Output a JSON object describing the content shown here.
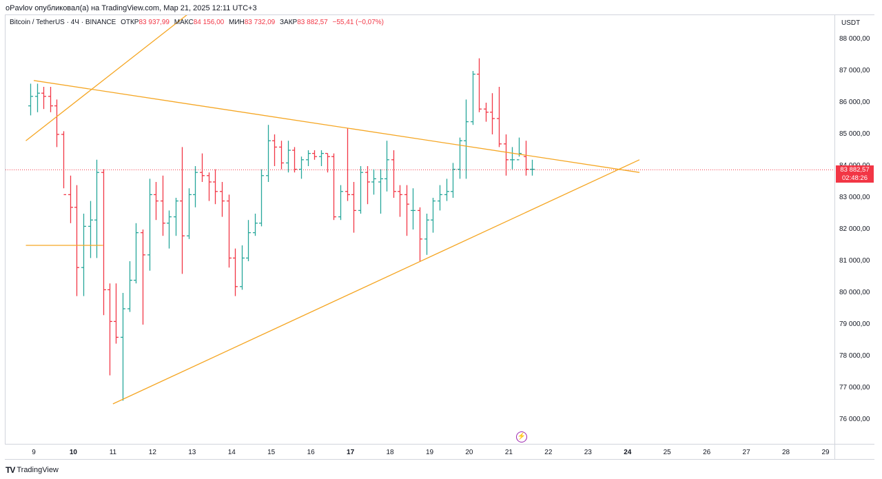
{
  "header": {
    "published": "oPavlov опубликовал(а) на TradingView.com, Мар 21, 2025 12:11 UTC+3"
  },
  "legend": {
    "symbol": "Bitcoin / TetherUS · 4Ч · BINANCE",
    "open_label": "ОТКР",
    "open_value": "83 937,99",
    "high_label": "МАКС",
    "high_value": "84 156,00",
    "low_label": "МИН",
    "low_value": "83 732,09",
    "close_label": "ЗАКР",
    "close_value": "83 882,57",
    "change_value": "−55,41 (−0,07%)"
  },
  "price_axis": {
    "currency": "USDT",
    "ticks": [
      "88 000,00",
      "87 000,00",
      "86 000,00",
      "85 000,00",
      "84 000,00",
      "83 000,00",
      "82 000,00",
      "81 000,00",
      "80 000,00",
      "79 000,00",
      "78 000,00",
      "77 000,00",
      "76 000,00"
    ]
  },
  "last_price": {
    "price": "83 882,57",
    "countdown": "02:48:26"
  },
  "time_axis": {
    "labels": [
      "9",
      "10",
      "11",
      "12",
      "13",
      "14",
      "15",
      "16",
      "17",
      "18",
      "19",
      "20",
      "21",
      "22",
      "23",
      "24",
      "25",
      "26",
      "27",
      "28",
      "29"
    ],
    "bold": [
      "10",
      "17",
      "24"
    ]
  },
  "brand": {
    "name": "TradingView",
    "logo": "TV"
  },
  "icons": {
    "alert": "lightning-icon"
  },
  "colors": {
    "up": "#26a69a",
    "down": "#f23645",
    "trendline": "#f5a623",
    "last_price": "#f23645"
  },
  "chart_data": {
    "type": "ohlc",
    "symbol": "Bitcoin / TetherUS",
    "interval": "4Ч",
    "exchange": "BINANCE",
    "ylim": [
      75300,
      88800
    ],
    "x_unit": "day of March 2025",
    "bars": [
      [
        8.92,
        85900,
        86600,
        85600,
        86200
      ],
      [
        9.08,
        86200,
        86600,
        85700,
        86300
      ],
      [
        9.25,
        86300,
        86500,
        85800,
        86200
      ],
      [
        9.42,
        86200,
        86500,
        85700,
        85900
      ],
      [
        9.58,
        85900,
        86100,
        84600,
        85000
      ],
      [
        9.75,
        85000,
        85100,
        83300,
        83100
      ],
      [
        9.92,
        83100,
        83700,
        82200,
        82700
      ],
      [
        10.08,
        82700,
        83400,
        79900,
        80800
      ],
      [
        10.25,
        80800,
        82500,
        79900,
        82100
      ],
      [
        10.42,
        82100,
        82900,
        81100,
        82300
      ],
      [
        10.58,
        82300,
        84200,
        81100,
        83800
      ],
      [
        10.75,
        83800,
        83900,
        79300,
        80100
      ],
      [
        10.92,
        80100,
        80300,
        77400,
        79100
      ],
      [
        11.08,
        79100,
        80300,
        78400,
        78600
      ],
      [
        11.25,
        78600,
        80000,
        76600,
        79500
      ],
      [
        11.42,
        79500,
        81000,
        79400,
        80400
      ],
      [
        11.58,
        80400,
        82200,
        80300,
        81900
      ],
      [
        11.75,
        81900,
        82000,
        79000,
        81200
      ],
      [
        11.92,
        81200,
        83600,
        80700,
        83100
      ],
      [
        12.08,
        83100,
        83500,
        82300,
        82900
      ],
      [
        12.25,
        82900,
        83700,
        81800,
        82200
      ],
      [
        12.42,
        82200,
        82600,
        81400,
        82400
      ],
      [
        12.58,
        82400,
        83000,
        81800,
        82900
      ],
      [
        12.75,
        82900,
        84600,
        80600,
        81800
      ],
      [
        12.92,
        81800,
        83300,
        81700,
        83100
      ],
      [
        13.08,
        83100,
        84000,
        82700,
        83800
      ],
      [
        13.25,
        83800,
        84400,
        83500,
        83700
      ],
      [
        13.42,
        83700,
        83800,
        82900,
        83500
      ],
      [
        13.58,
        83500,
        83900,
        82800,
        83200
      ],
      [
        13.75,
        83200,
        83500,
        82400,
        82900
      ],
      [
        13.92,
        82900,
        83100,
        80800,
        81100
      ],
      [
        14.08,
        81100,
        81400,
        79900,
        80200
      ],
      [
        14.25,
        80200,
        81500,
        80100,
        81100
      ],
      [
        14.42,
        81100,
        82300,
        81000,
        81900
      ],
      [
        14.58,
        81900,
        82500,
        81800,
        82200
      ],
      [
        14.75,
        82200,
        83900,
        82100,
        83700
      ],
      [
        14.92,
        83700,
        85300,
        83500,
        84800
      ],
      [
        15.08,
        84800,
        85000,
        84000,
        84600
      ],
      [
        15.25,
        84600,
        84800,
        83900,
        84100
      ],
      [
        15.42,
        84100,
        84800,
        83800,
        84500
      ],
      [
        15.58,
        84500,
        84600,
        83800,
        83900
      ],
      [
        15.75,
        83900,
        84300,
        83600,
        84200
      ],
      [
        15.92,
        84200,
        84500,
        84000,
        84400
      ],
      [
        16.08,
        84400,
        84500,
        84200,
        84300
      ],
      [
        16.25,
        84300,
        84500,
        84000,
        84400
      ],
      [
        16.42,
        84400,
        84400,
        83800,
        84300
      ],
      [
        16.58,
        84300,
        84400,
        82300,
        82400
      ],
      [
        16.75,
        82400,
        83400,
        82300,
        83200
      ],
      [
        16.92,
        83200,
        85200,
        82900,
        83100
      ],
      [
        17.08,
        83100,
        83500,
        81900,
        82600
      ],
      [
        17.25,
        82600,
        84000,
        82500,
        83800
      ],
      [
        17.42,
        83800,
        84000,
        82800,
        83500
      ],
      [
        17.58,
        83500,
        83900,
        83100,
        83600
      ],
      [
        17.75,
        83500,
        83900,
        82500,
        83600
      ],
      [
        17.92,
        83600,
        84800,
        83200,
        84200
      ],
      [
        18.08,
        84200,
        84500,
        83000,
        83200
      ],
      [
        18.25,
        83200,
        83400,
        82400,
        83100
      ],
      [
        18.42,
        83100,
        83400,
        81800,
        82800
      ],
      [
        18.58,
        82600,
        83300,
        82000,
        82600
      ],
      [
        18.75,
        82600,
        82700,
        81000,
        81700
      ],
      [
        18.92,
        81700,
        82500,
        81200,
        82300
      ],
      [
        19.08,
        82300,
        83000,
        81900,
        82900
      ],
      [
        19.25,
        82900,
        83400,
        82600,
        83100
      ],
      [
        19.42,
        83100,
        83600,
        82900,
        83200
      ],
      [
        19.58,
        83200,
        84100,
        83000,
        83900
      ],
      [
        19.75,
        83900,
        84900,
        83600,
        84800
      ],
      [
        19.92,
        84800,
        86100,
        83600,
        85400
      ],
      [
        20.08,
        85400,
        87000,
        85300,
        86900
      ],
      [
        20.25,
        86900,
        87400,
        85700,
        85800
      ],
      [
        20.42,
        85800,
        86000,
        85400,
        85700
      ],
      [
        20.58,
        85700,
        86300,
        85000,
        85500
      ],
      [
        20.75,
        85500,
        86500,
        84600,
        84700
      ],
      [
        20.92,
        84700,
        85000,
        83700,
        84200
      ],
      [
        21.08,
        84200,
        84600,
        83900,
        84200
      ],
      [
        21.25,
        84200,
        84900,
        84300,
        84400
      ],
      [
        21.42,
        84300,
        84800,
        83700,
        83900
      ],
      [
        21.58,
        83900,
        84200,
        83700,
        83900
      ]
    ],
    "trendlines": [
      {
        "from": [
          9.0,
          86700
        ],
        "to": [
          24.3,
          83800
        ]
      },
      {
        "from": [
          11.0,
          76500
        ],
        "to": [
          24.3,
          84200
        ]
      },
      {
        "from": [
          8.8,
          84800
        ],
        "to": [
          12.9,
          88800
        ]
      }
    ],
    "hline": {
      "price": 81500,
      "from": 8.8,
      "to": 10.75
    },
    "last_price_line": 83882.57
  }
}
